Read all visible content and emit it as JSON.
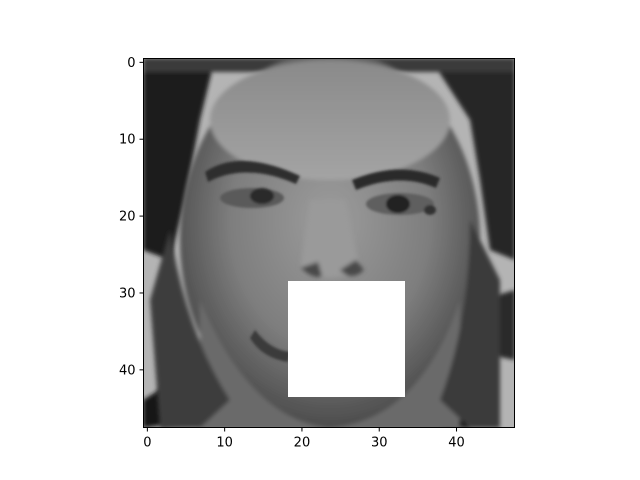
{
  "chart_data": {
    "type": "heatmap",
    "title": "",
    "xlabel": "",
    "ylabel": "",
    "colormap": "gray",
    "image_size": [
      48,
      48
    ],
    "xlim": [
      -0.5,
      47.5
    ],
    "ylim": [
      47.5,
      -0.5
    ],
    "x_ticks": [
      0,
      10,
      20,
      30,
      40
    ],
    "y_ticks": [
      0,
      10,
      20,
      30,
      40
    ],
    "x_tick_labels": [
      "0",
      "10",
      "20",
      "30",
      "40"
    ],
    "y_tick_labels": [
      "0",
      "10",
      "20",
      "30",
      "40"
    ],
    "content": "grayscale face",
    "occluded_region": {
      "x_range": [
        19,
        33
      ],
      "y_range": [
        29,
        43
      ],
      "value": 255
    }
  }
}
